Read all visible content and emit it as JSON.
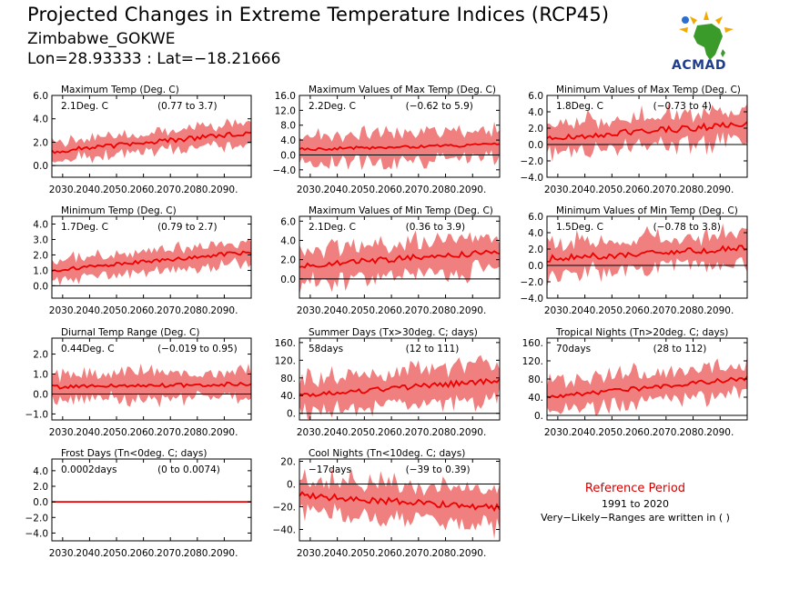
{
  "header": {
    "title": "Projected Changes in Extreme Temperature Indices (RCP45)",
    "location": "Zimbabwe_GOKWE",
    "coords": "Lon=28.93333 : Lat=−18.21666"
  },
  "logo": {
    "text": "ACMAD"
  },
  "note": {
    "title": "Reference Period",
    "period": "1991 to 2020",
    "ranges": "Very−Likely−Ranges are written in ( )"
  },
  "colors": {
    "mean_line": "#ee0000",
    "band": "#f08080",
    "zero_line": "#000000",
    "note_title": "#d40000"
  },
  "chart_data": [
    {
      "type": "area",
      "title": "Maximum Temp (Deg. C)",
      "mean_label": "2.1Deg. C",
      "range_label": "(0.77 to 3.7)",
      "x_ticks": [
        "2030.",
        "2040.",
        "2050.",
        "2060.",
        "2070.",
        "2080.",
        "2090."
      ],
      "x_range": [
        2026,
        2100
      ],
      "y_ticks": [
        "0.0",
        "2.0",
        "4.0",
        "6.0"
      ],
      "ylim": [
        -1.0,
        6.0
      ],
      "mean_start": 1.2,
      "mean_end": 2.8,
      "spread": 0.8,
      "noise": 0.2
    },
    {
      "type": "area",
      "title": "Maximum Values of Max Temp (Deg. C)",
      "mean_label": "2.2Deg. C",
      "range_label": "(−0.62 to 5.9)",
      "x_ticks": [
        "2030.",
        "2040.",
        "2050.",
        "2060.",
        "2070.",
        "2080.",
        "2090."
      ],
      "x_range": [
        2026,
        2100
      ],
      "y_ticks": [
        "−4.0",
        "0.0",
        "4.0",
        "8.0",
        "12.0",
        "16.0"
      ],
      "ylim": [
        -6.0,
        16.0
      ],
      "mean_start": 1.5,
      "mean_end": 2.8,
      "spread": 3.5,
      "noise": 0.4
    },
    {
      "type": "area",
      "title": "Minimum Values of Max Temp (Deg. C)",
      "mean_label": "1.8Deg. C",
      "range_label": "(−0.73 to 4)",
      "x_ticks": [
        "2030.",
        "2040.",
        "2050.",
        "2060.",
        "2070.",
        "2080.",
        "2090."
      ],
      "x_range": [
        2026,
        2100
      ],
      "y_ticks": [
        "−4.0",
        "−2.0",
        "0.0",
        "2.0",
        "4.0",
        "6.0"
      ],
      "ylim": [
        -4.0,
        6.0
      ],
      "mean_start": 0.8,
      "mean_end": 2.5,
      "spread": 1.7,
      "noise": 0.4
    },
    {
      "type": "area",
      "title": "Minimum Temp (Deg. C)",
      "mean_label": "1.7Deg. C",
      "range_label": "(0.79 to 2.7)",
      "x_ticks": [
        "2030.",
        "2040.",
        "2050.",
        "2060.",
        "2070.",
        "2080.",
        "2090."
      ],
      "x_range": [
        2026,
        2100
      ],
      "y_ticks": [
        "0.0",
        "1.0",
        "2.0",
        "3.0",
        "4.0"
      ],
      "ylim": [
        -0.8,
        4.5
      ],
      "mean_start": 1.0,
      "mean_end": 2.2,
      "spread": 0.6,
      "noise": 0.12
    },
    {
      "type": "area",
      "title": "Maximum Values of Min Temp (Deg. C)",
      "mean_label": "2.1Deg. C",
      "range_label": "(0.36 to 3.9)",
      "x_ticks": [
        "2030.",
        "2040.",
        "2050.",
        "2060.",
        "2070.",
        "2080.",
        "2090."
      ],
      "x_range": [
        2026,
        2100
      ],
      "y_ticks": [
        "0.0",
        "2.0",
        "4.0",
        "6.0"
      ],
      "ylim": [
        -2.0,
        6.5
      ],
      "mean_start": 1.4,
      "mean_end": 2.8,
      "spread": 1.6,
      "noise": 0.3
    },
    {
      "type": "area",
      "title": "Minimum Values of Min Temp (Deg. C)",
      "mean_label": "1.5Deg. C",
      "range_label": "(−0.78 to 3.8)",
      "x_ticks": [
        "2030.",
        "2040.",
        "2050.",
        "2060.",
        "2070.",
        "2080.",
        "2090."
      ],
      "x_range": [
        2026,
        2100
      ],
      "y_ticks": [
        "−4.0",
        "−2.0",
        "0.0",
        "2.0",
        "4.0",
        "6.0"
      ],
      "ylim": [
        -4.0,
        6.0
      ],
      "mean_start": 0.8,
      "mean_end": 2.1,
      "spread": 1.8,
      "noise": 0.4
    },
    {
      "type": "area",
      "title": "Diurnal Temp Range (Deg. C)",
      "mean_label": "0.44Deg. C",
      "range_label": "(−0.019 to 0.95)",
      "x_ticks": [
        "2030.",
        "2040.",
        "2050.",
        "2060.",
        "2070.",
        "2080.",
        "2090."
      ],
      "x_range": [
        2026,
        2100
      ],
      "y_ticks": [
        "−1.0",
        "0.0",
        "1.0",
        "2.0"
      ],
      "ylim": [
        -1.3,
        2.8
      ],
      "mean_start": 0.35,
      "mean_end": 0.5,
      "spread": 0.6,
      "noise": 0.1
    },
    {
      "type": "area",
      "title": "Summer Days (Tx>30deg. C; days)",
      "mean_label": "58days",
      "range_label": "(12 to 111)",
      "x_ticks": [
        "2030.",
        "2040.",
        "2050.",
        "2060.",
        "2070.",
        "2080.",
        "2090."
      ],
      "x_range": [
        2026,
        2100
      ],
      "y_ticks": [
        "0.",
        "40.",
        "80.",
        "120.",
        "160."
      ],
      "ylim": [
        -15,
        170
      ],
      "mean_start": 40,
      "mean_end": 75,
      "spread": 35,
      "noise": 6
    },
    {
      "type": "area",
      "title": "Tropical Nights (Tn>20deg. C; days)",
      "mean_label": "70days",
      "range_label": "(28 to 112)",
      "x_ticks": [
        "2030.",
        "2040.",
        "2050.",
        "2060.",
        "2070.",
        "2080.",
        "2090."
      ],
      "x_range": [
        2026,
        2100
      ],
      "y_ticks": [
        "0.",
        "40.",
        "80.",
        "120.",
        "160."
      ],
      "ylim": [
        -10,
        170
      ],
      "mean_start": 40,
      "mean_end": 82,
      "spread": 30,
      "noise": 5
    },
    {
      "type": "area",
      "title": "Frost Days (Tn<0deg. C; days)",
      "mean_label": "0.0002days",
      "range_label": "(0 to 0.0074)",
      "x_ticks": [
        "2030.",
        "2040.",
        "2050.",
        "2060.",
        "2070.",
        "2080.",
        "2090."
      ],
      "x_range": [
        2026,
        2100
      ],
      "y_ticks": [
        "−4.0",
        "−2.0",
        "0.0",
        "2.0",
        "4.0"
      ],
      "ylim": [
        -5.0,
        5.5
      ],
      "mean_start": 0.0,
      "mean_end": 0.0,
      "spread": 0.05,
      "noise": 0.0
    },
    {
      "type": "area",
      "title": "Cool Nights (Tn<10deg. C; days)",
      "mean_label": "−17days",
      "range_label": "(−39 to 0.39)",
      "x_ticks": [
        "2030.",
        "2040.",
        "2050.",
        "2060.",
        "2070.",
        "2080.",
        "2090."
      ],
      "x_range": [
        2026,
        2100
      ],
      "y_ticks": [
        "−40.",
        "−20.",
        "0.",
        "20."
      ],
      "ylim": [
        -50,
        22
      ],
      "mean_start": -10,
      "mean_end": -21,
      "spread": 14,
      "noise": 3
    }
  ]
}
